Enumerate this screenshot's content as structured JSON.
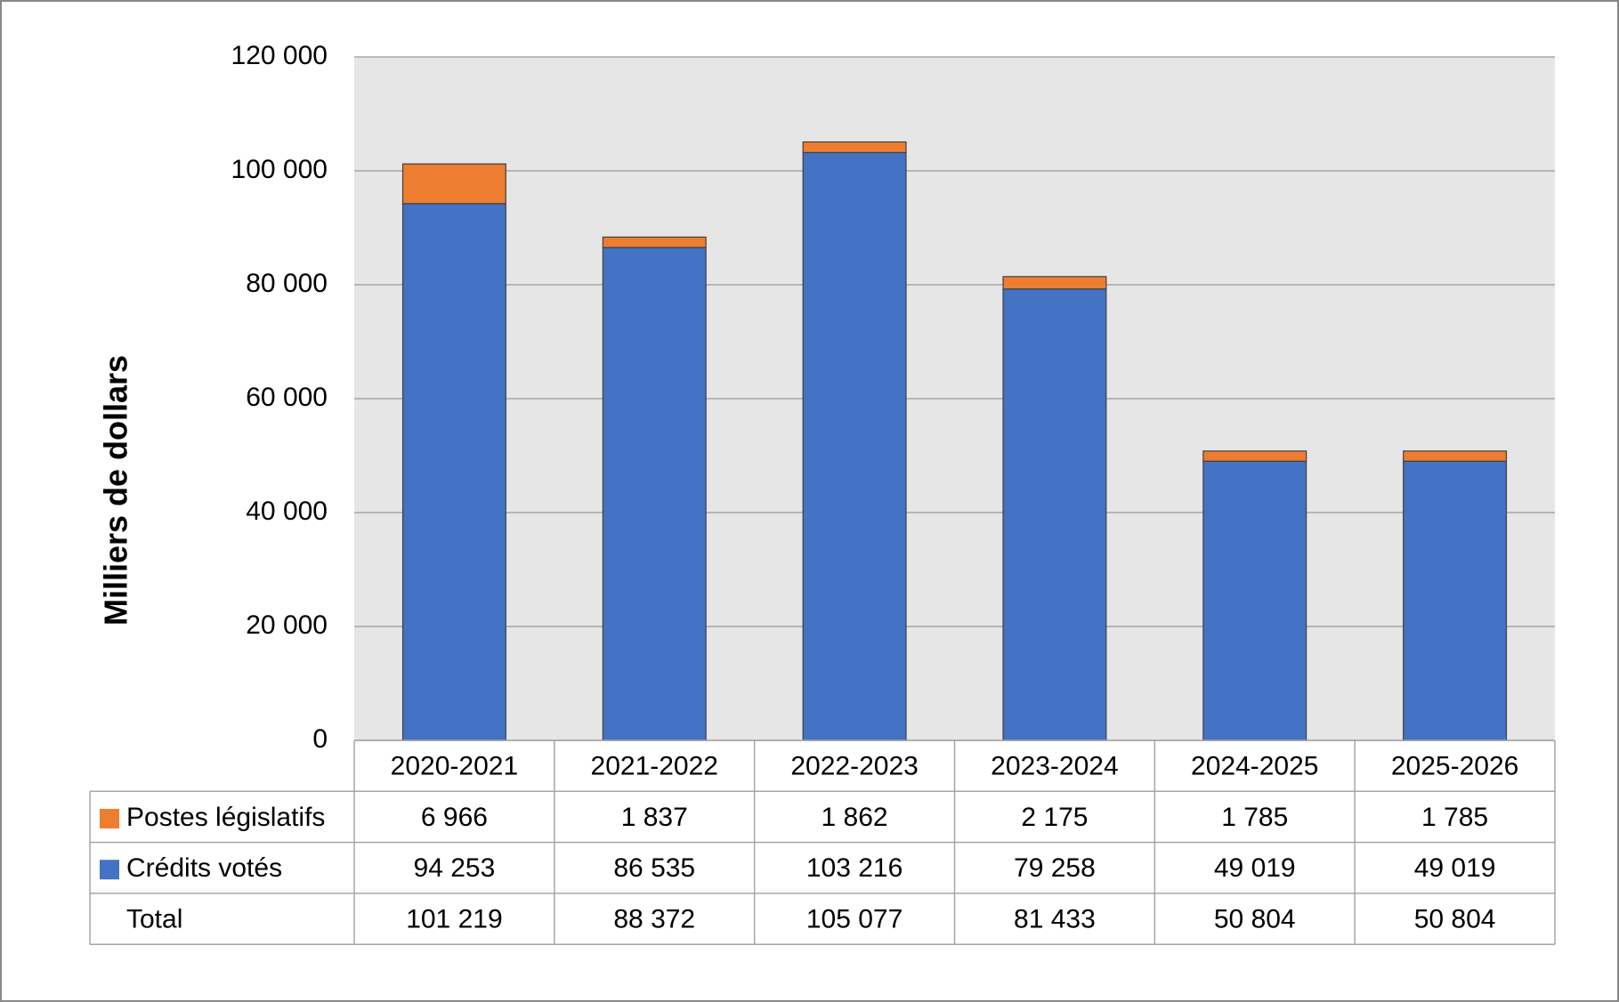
{
  "chart_data": {
    "type": "bar",
    "stacked": true,
    "y_label": "Milliers de dollars",
    "categories": [
      "2020-2021",
      "2021-2022",
      "2022-2023",
      "2023-2024",
      "2024-2025",
      "2025-2026"
    ],
    "series": [
      {
        "name": "Crédits votés",
        "color": "#4472c4",
        "values": [
          94253,
          86535,
          103216,
          79258,
          49019,
          49019
        ],
        "value_labels": [
          "94 253",
          "86 535",
          "103 216",
          "79 258",
          "49 019",
          "49 019"
        ]
      },
      {
        "name": "Postes législatifs",
        "color": "#ed7d31",
        "values": [
          6966,
          1837,
          1862,
          2175,
          1785,
          1785
        ],
        "value_labels": [
          "6 966",
          "1 837",
          "1 862",
          "2 175",
          "1 785",
          "1 785"
        ]
      }
    ],
    "total": {
      "name": "Total",
      "values": [
        101219,
        88372,
        105077,
        81433,
        50804,
        50804
      ],
      "value_labels": [
        "101 219",
        "88 372",
        "105 077",
        "81 433",
        "50 804",
        "50 804"
      ]
    },
    "ylim": [
      0,
      120000
    ],
    "yticks": [
      0,
      {
        "value": 20000,
        "label": "20 000"
      },
      {
        "value": 40000,
        "label": "40 000"
      },
      {
        "value": 60000,
        "label": "60 000"
      },
      {
        "value": 80000,
        "label": "80 000"
      },
      {
        "value": 100000,
        "label": "100 000"
      },
      {
        "value": 120000,
        "label": "120 000"
      }
    ],
    "grid": true
  }
}
